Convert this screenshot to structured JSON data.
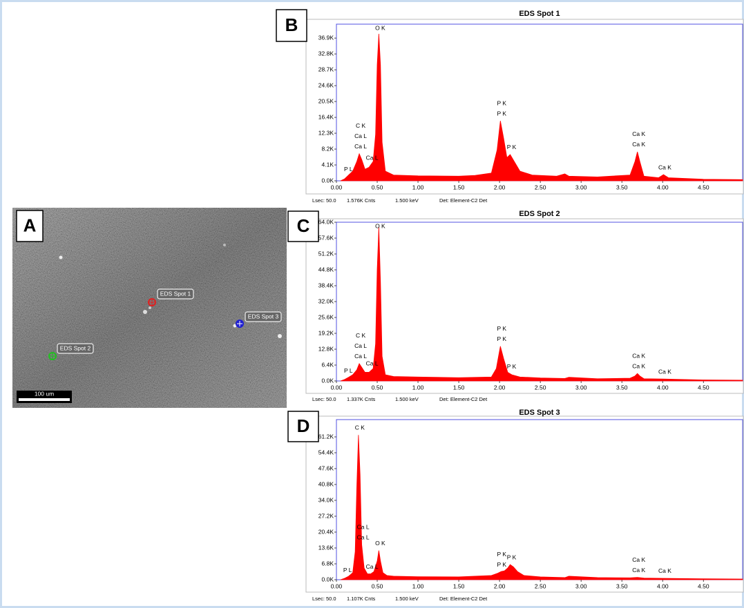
{
  "panel_labels": [
    "A",
    "B",
    "C",
    "D"
  ],
  "sem_image": {
    "spot_labels": [
      "EDS Spot 1",
      "EDS Spot 2",
      "EDS Spot 3"
    ],
    "scale_bar": "100 um"
  },
  "chart_data": [
    {
      "type": "area",
      "title": "EDS Spot 1",
      "color": "#ff0000",
      "x": [
        0.05,
        0.1,
        0.15,
        0.2,
        0.25,
        0.28,
        0.31,
        0.35,
        0.4,
        0.45,
        0.48,
        0.5,
        0.52,
        0.54,
        0.56,
        0.6,
        0.7,
        1.0,
        1.5,
        1.7,
        1.9,
        1.97,
        2.01,
        2.05,
        2.09,
        2.13,
        2.18,
        2.25,
        2.4,
        2.7,
        2.8,
        2.85,
        3.2,
        3.6,
        3.66,
        3.69,
        3.72,
        3.77,
        3.95,
        4.01,
        4.07,
        4.5,
        4.98
      ],
      "values": [
        0,
        500,
        1500,
        2500,
        5000,
        7000,
        5500,
        3000,
        3500,
        5000,
        12000,
        30000,
        38000,
        30000,
        10000,
        2500,
        1500,
        1300,
        1200,
        1400,
        2000,
        8000,
        15500,
        11000,
        6000,
        6800,
        5000,
        2500,
        1500,
        1200,
        1800,
        1200,
        1000,
        1500,
        5000,
        7500,
        5000,
        1200,
        800,
        1600,
        800,
        400,
        300
      ],
      "xlim": [
        0,
        4.98
      ],
      "ylim": [
        0,
        40500
      ],
      "xticks": [
        {
          "value": 0,
          "label": "0.00"
        },
        {
          "value": 0.5,
          "label": "0.50"
        },
        {
          "value": 1,
          "label": "1.00"
        },
        {
          "value": 1.5,
          "label": "1.50"
        },
        {
          "value": 2,
          "label": "2.00"
        },
        {
          "value": 2.5,
          "label": "2.50"
        },
        {
          "value": 3,
          "label": "3.00"
        },
        {
          "value": 3.5,
          "label": "3.50"
        },
        {
          "value": 4,
          "label": "4.00"
        },
        {
          "value": 4.5,
          "label": "4.50"
        }
      ],
      "yticks": [
        {
          "value": 0,
          "label": "0.0K"
        },
        {
          "value": 4100,
          "label": "4.1K"
        },
        {
          "value": 8200,
          "label": "8.2K"
        },
        {
          "value": 12300,
          "label": "12.3K"
        },
        {
          "value": 16400,
          "label": "16.4K"
        },
        {
          "value": 20500,
          "label": "20.5K"
        },
        {
          "value": 24600,
          "label": "24.6K"
        },
        {
          "value": 28700,
          "label": "28.7K"
        },
        {
          "value": 32800,
          "label": "32.8K"
        },
        {
          "value": 36900,
          "label": "36.9K"
        }
      ],
      "annotations": [
        {
          "text": "P  L",
          "x": 0.13
        },
        {
          "text": "Ca L",
          "x": 0.28
        },
        {
          "text": "Ca L",
          "x": 0.28
        },
        {
          "text": "C  K",
          "x": 0.28
        },
        {
          "text": "Ca L",
          "x": 0.42
        },
        {
          "text": "O  K",
          "x": 0.52
        },
        {
          "text": "P  K",
          "x": 2.01
        },
        {
          "text": "P  K",
          "x": 2.01
        },
        {
          "text": "P  K",
          "x": 2.13
        },
        {
          "text": "Ca K",
          "x": 3.69
        },
        {
          "text": "Ca K",
          "x": 3.69
        },
        {
          "text": "Ca K",
          "x": 4.01
        }
      ],
      "footer": [
        "Lsec: 50.0",
        "1.576K Cnts",
        "1.500 keV",
        "Det: Element-C2 Det"
      ]
    },
    {
      "type": "area",
      "title": "EDS Spot 2",
      "color": "#ff0000",
      "x": [
        0.05,
        0.1,
        0.15,
        0.2,
        0.25,
        0.28,
        0.31,
        0.35,
        0.4,
        0.45,
        0.48,
        0.5,
        0.52,
        0.54,
        0.56,
        0.6,
        0.7,
        1.0,
        1.5,
        1.9,
        1.96,
        2.01,
        2.05,
        2.1,
        2.15,
        2.25,
        2.5,
        2.8,
        2.85,
        3.2,
        3.6,
        3.66,
        3.69,
        3.72,
        3.77,
        4.0,
        4.5,
        4.98
      ],
      "values": [
        0,
        600,
        1500,
        2500,
        4500,
        7000,
        5500,
        3500,
        3500,
        5000,
        15000,
        45000,
        62000,
        40000,
        10000,
        2500,
        1800,
        1600,
        1300,
        1600,
        5000,
        14000,
        9000,
        3500,
        2500,
        1600,
        1200,
        1000,
        1500,
        900,
        1100,
        2000,
        3000,
        2000,
        900,
        800,
        400,
        300
      ],
      "xlim": [
        0,
        4.98
      ],
      "ylim": [
        0,
        64000
      ],
      "xticks": [
        {
          "value": 0,
          "label": "0.00"
        },
        {
          "value": 0.5,
          "label": "0.50"
        },
        {
          "value": 1,
          "label": "1.00"
        },
        {
          "value": 1.5,
          "label": "1.50"
        },
        {
          "value": 2,
          "label": "2.00"
        },
        {
          "value": 2.5,
          "label": "2.50"
        },
        {
          "value": 3,
          "label": "3.00"
        },
        {
          "value": 3.5,
          "label": "3.50"
        },
        {
          "value": 4,
          "label": "4.00"
        },
        {
          "value": 4.5,
          "label": "4.50"
        }
      ],
      "yticks": [
        {
          "value": 0,
          "label": "0.0K"
        },
        {
          "value": 6400,
          "label": "6.4K"
        },
        {
          "value": 12800,
          "label": "12.8K"
        },
        {
          "value": 19200,
          "label": "19.2K"
        },
        {
          "value": 25600,
          "label": "25.6K"
        },
        {
          "value": 32000,
          "label": "32.0K"
        },
        {
          "value": 38400,
          "label": "38.4K"
        },
        {
          "value": 44800,
          "label": "44.8K"
        },
        {
          "value": 51200,
          "label": "51.2K"
        },
        {
          "value": 57600,
          "label": "57.6K"
        },
        {
          "value": 64000,
          "label": "64.0K"
        }
      ],
      "annotations": [
        {
          "text": "P  L",
          "x": 0.13
        },
        {
          "text": "Ca L",
          "x": 0.28
        },
        {
          "text": "Ca L",
          "x": 0.28
        },
        {
          "text": "C  K",
          "x": 0.28
        },
        {
          "text": "Ca L",
          "x": 0.42
        },
        {
          "text": "O  K",
          "x": 0.52
        },
        {
          "text": "P  K",
          "x": 2.01
        },
        {
          "text": "P  K",
          "x": 2.01
        },
        {
          "text": "P  K",
          "x": 2.13
        },
        {
          "text": "Ca K",
          "x": 3.69
        },
        {
          "text": "Ca K",
          "x": 3.69
        },
        {
          "text": "Ca K",
          "x": 4.01
        }
      ],
      "footer": [
        "Lsec: 50.0",
        "1.337K Cnts",
        "1.500 keV",
        "Det: Element-C2 Det"
      ]
    },
    {
      "type": "area",
      "title": "EDS Spot 3",
      "color": "#ff0000",
      "x": [
        0.05,
        0.1,
        0.15,
        0.2,
        0.23,
        0.25,
        0.27,
        0.29,
        0.31,
        0.34,
        0.38,
        0.42,
        0.46,
        0.5,
        0.52,
        0.54,
        0.57,
        0.62,
        0.7,
        1.0,
        1.5,
        1.7,
        1.9,
        1.98,
        2.02,
        2.06,
        2.1,
        2.13,
        2.17,
        2.22,
        2.3,
        2.5,
        2.8,
        2.85,
        3.2,
        3.6,
        3.69,
        3.77,
        4.0,
        4.5,
        4.98
      ],
      "values": [
        0,
        600,
        1500,
        3000,
        12000,
        40000,
        62000,
        45000,
        15000,
        5000,
        2500,
        2500,
        3500,
        8000,
        12500,
        8000,
        3000,
        1800,
        1500,
        1300,
        1200,
        1500,
        1800,
        2800,
        3500,
        3800,
        5000,
        6500,
        5500,
        3500,
        1800,
        1200,
        900,
        1500,
        900,
        800,
        1000,
        700,
        600,
        400,
        300
      ],
      "xlim": [
        0,
        4.98
      ],
      "ylim": [
        0,
        68600
      ],
      "xticks": [
        {
          "value": 0,
          "label": "0.00"
        },
        {
          "value": 0.5,
          "label": "0.50"
        },
        {
          "value": 1,
          "label": "1.00"
        },
        {
          "value": 1.5,
          "label": "1.50"
        },
        {
          "value": 2,
          "label": "2.00"
        },
        {
          "value": 2.5,
          "label": "2.50"
        },
        {
          "value": 3,
          "label": "3.00"
        },
        {
          "value": 3.5,
          "label": "3.50"
        },
        {
          "value": 4,
          "label": "4.00"
        },
        {
          "value": 4.5,
          "label": "4.50"
        }
      ],
      "yticks": [
        {
          "value": 0,
          "label": "0.0K"
        },
        {
          "value": 6800,
          "label": "6.8K"
        },
        {
          "value": 13600,
          "label": "13.6K"
        },
        {
          "value": 20400,
          "label": "20.4K"
        },
        {
          "value": 27200,
          "label": "27.2K"
        },
        {
          "value": 34000,
          "label": "34.0K"
        },
        {
          "value": 40800,
          "label": "40.8K"
        },
        {
          "value": 47600,
          "label": "47.6K"
        },
        {
          "value": 54400,
          "label": "54.4K"
        },
        {
          "value": 61200,
          "label": "61.2K"
        }
      ],
      "annotations": [
        {
          "text": "P  L",
          "x": 0.12
        },
        {
          "text": "Ca L",
          "x": 0.31
        },
        {
          "text": "Ca L",
          "x": 0.31
        },
        {
          "text": "C  K",
          "x": 0.27
        },
        {
          "text": "Ca L",
          "x": 0.42
        },
        {
          "text": "O  K",
          "x": 0.52
        },
        {
          "text": "P  K",
          "x": 2.01
        },
        {
          "text": "P  K",
          "x": 2.01
        },
        {
          "text": "P  K",
          "x": 2.13
        },
        {
          "text": "Ca K",
          "x": 3.69
        },
        {
          "text": "Ca K",
          "x": 3.69
        },
        {
          "text": "Ca K",
          "x": 4.01
        }
      ],
      "footer": [
        "Lsec: 50.0",
        "1.107K Cnts",
        "1.500 keV",
        "Det: Element-C2 Det"
      ]
    }
  ]
}
